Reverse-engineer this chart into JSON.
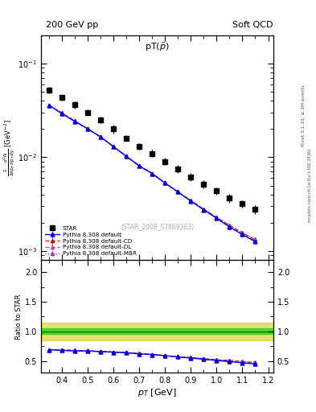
{
  "title_left": "200 GeV pp",
  "title_right": "Soft QCD",
  "plot_title": "pT($\\bar{p}$)",
  "ylabel_main": "$\\frac{1}{2\\pi p_T} \\frac{d^2N}{dp_T\\, dy}$ [GeV$^{-2}$]",
  "ylabel_ratio": "Ratio to STAR",
  "xlabel": "$p_T$ [GeV]",
  "watermark": "(STAR_2008_S7869363)",
  "rivet_label": "Rivet 3.1.10, ≥ 3M events",
  "mcplots_label": "mcplots.cern.ch [arXiv:1306.3436]",
  "star_pt": [
    0.35,
    0.4,
    0.45,
    0.5,
    0.55,
    0.6,
    0.65,
    0.7,
    0.75,
    0.8,
    0.85,
    0.9,
    0.95,
    1.0,
    1.05,
    1.1,
    1.15
  ],
  "star_val": [
    0.052,
    0.043,
    0.036,
    0.03,
    0.025,
    0.02,
    0.016,
    0.013,
    0.011,
    0.009,
    0.0075,
    0.0062,
    0.0052,
    0.0044,
    0.0037,
    0.0032,
    0.0028
  ],
  "star_err": [
    0.004,
    0.003,
    0.003,
    0.002,
    0.002,
    0.002,
    0.001,
    0.001,
    0.001,
    0.0008,
    0.0007,
    0.0006,
    0.0005,
    0.0004,
    0.0004,
    0.0003,
    0.0003
  ],
  "py_ratio": [
    0.69,
    0.68,
    0.67,
    0.67,
    0.66,
    0.65,
    0.64,
    0.62,
    0.61,
    0.59,
    0.57,
    0.55,
    0.53,
    0.51,
    0.49,
    0.47,
    0.45
  ],
  "pyCD_ratio": [
    0.69,
    0.69,
    0.68,
    0.67,
    0.66,
    0.65,
    0.64,
    0.63,
    0.61,
    0.59,
    0.57,
    0.56,
    0.54,
    0.52,
    0.51,
    0.49,
    0.47
  ],
  "pyDL_ratio": [
    0.69,
    0.68,
    0.67,
    0.67,
    0.66,
    0.65,
    0.64,
    0.62,
    0.61,
    0.59,
    0.57,
    0.55,
    0.53,
    0.51,
    0.49,
    0.47,
    0.46
  ],
  "pyMBR_ratio": [
    0.69,
    0.68,
    0.68,
    0.67,
    0.66,
    0.65,
    0.64,
    0.63,
    0.61,
    0.59,
    0.57,
    0.56,
    0.54,
    0.52,
    0.51,
    0.49,
    0.48
  ],
  "py_ratio_err": [
    0.02,
    0.02,
    0.02,
    0.02,
    0.02,
    0.02,
    0.02,
    0.02,
    0.02,
    0.02,
    0.02,
    0.02,
    0.02,
    0.02,
    0.02,
    0.02,
    0.02
  ],
  "xlim": [
    0.32,
    1.22
  ],
  "ylim_main": [
    0.0008,
    0.2
  ],
  "ylim_ratio": [
    0.3,
    2.2
  ],
  "ratio_yticks": [
    0.5,
    1.0,
    1.5,
    2.0
  ],
  "color_star": "#000000",
  "color_py_default": "#0000cc",
  "color_py_CD": "#cc0000",
  "color_py_DL": "#cc44aa",
  "color_py_MBR": "#8844bb",
  "bg_color": "#ffffff",
  "band_green": "#00cc00",
  "band_yellow": "#cccc00",
  "band_green_lo": 0.95,
  "band_green_hi": 1.05,
  "band_yellow_lo": 0.85,
  "band_yellow_hi": 1.15
}
